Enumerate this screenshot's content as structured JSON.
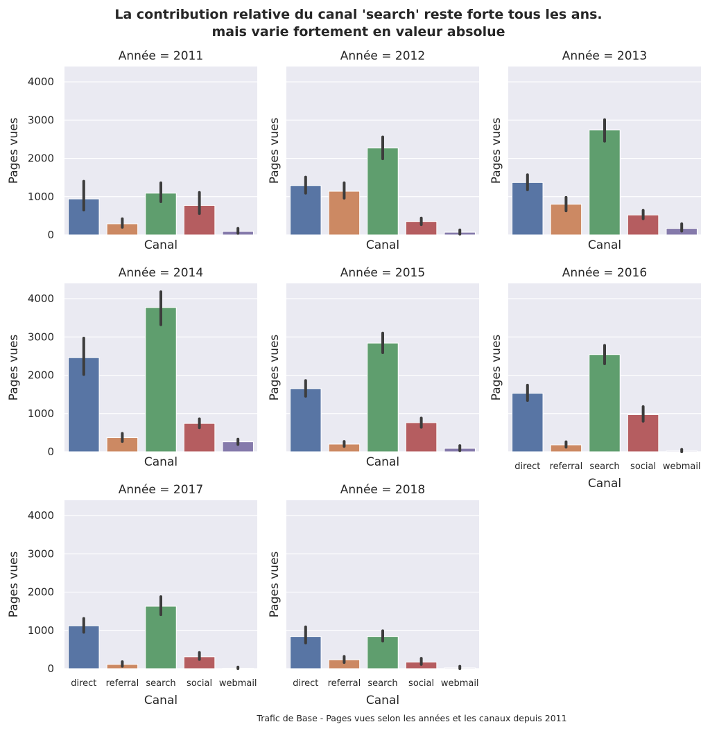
{
  "chart_data": {
    "type": "bar",
    "title": "La contribution relative du canal 'search' reste forte tous les ans.",
    "subtitle": "mais varie fortement en valeur absolue",
    "caption": "Trafic de Base - Pages vues selon les années et les canaux depuis 2011",
    "xlabel": "Canal",
    "ylabel": "Pages vues",
    "ylim": [
      0,
      4400
    ],
    "yticks": [
      0,
      1000,
      2000,
      3000,
      4000
    ],
    "grid": true,
    "categories": [
      "direct",
      "referral",
      "search",
      "social",
      "webmail"
    ],
    "colors": {
      "direct": "#5875a4",
      "referral": "#cc8963",
      "search": "#5f9e6e",
      "social": "#b55d60",
      "webmail": "#857aab"
    },
    "panels": [
      {
        "title": "Année = 2011",
        "values": [
          940,
          290,
          1090,
          770,
          90
        ],
        "ci": [
          [
            650,
            1400
          ],
          [
            200,
            420
          ],
          [
            870,
            1360
          ],
          [
            560,
            1110
          ],
          [
            40,
            170
          ]
        ]
      },
      {
        "title": "Année = 2012",
        "values": [
          1290,
          1140,
          2270,
          350,
          70
        ],
        "ci": [
          [
            1090,
            1510
          ],
          [
            960,
            1360
          ],
          [
            1990,
            2560
          ],
          [
            270,
            440
          ],
          [
            20,
            130
          ]
        ]
      },
      {
        "title": "Année = 2013",
        "values": [
          1370,
          800,
          2740,
          520,
          170
        ],
        "ci": [
          [
            1180,
            1570
          ],
          [
            630,
            980
          ],
          [
            2450,
            3010
          ],
          [
            420,
            640
          ],
          [
            100,
            290
          ]
        ]
      },
      {
        "title": "Année = 2014",
        "values": [
          2460,
          370,
          3770,
          740,
          260
        ],
        "ci": [
          [
            2020,
            2970
          ],
          [
            270,
            480
          ],
          [
            3320,
            4180
          ],
          [
            630,
            860
          ],
          [
            190,
            330
          ]
        ]
      },
      {
        "title": "Année = 2015",
        "values": [
          1650,
          200,
          2840,
          760,
          90
        ],
        "ci": [
          [
            1450,
            1860
          ],
          [
            140,
            270
          ],
          [
            2590,
            3100
          ],
          [
            640,
            880
          ],
          [
            30,
            160
          ]
        ]
      },
      {
        "title": "Année = 2016",
        "values": [
          1530,
          180,
          2540,
          970,
          20
        ],
        "ci": [
          [
            1340,
            1740
          ],
          [
            120,
            260
          ],
          [
            2300,
            2780
          ],
          [
            800,
            1180
          ],
          [
            0,
            60
          ]
        ]
      },
      {
        "title": "Année = 2017",
        "values": [
          1120,
          110,
          1630,
          310,
          10
        ],
        "ci": [
          [
            950,
            1310
          ],
          [
            60,
            180
          ],
          [
            1410,
            1880
          ],
          [
            240,
            420
          ],
          [
            0,
            40
          ]
        ]
      },
      {
        "title": "Année = 2018",
        "values": [
          840,
          230,
          840,
          170,
          20
        ],
        "ci": [
          [
            670,
            1090
          ],
          [
            160,
            320
          ],
          [
            720,
            990
          ],
          [
            110,
            270
          ],
          [
            0,
            60
          ]
        ]
      }
    ]
  }
}
